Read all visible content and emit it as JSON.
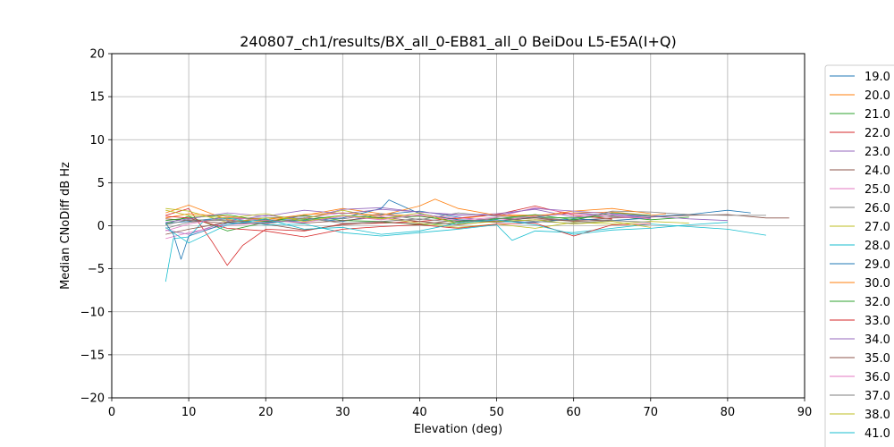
{
  "chart_data": {
    "type": "line",
    "title": "240807_ch1/results/BX_all_0-EB81_all_0 BeiDou L5-E5A(I+Q)",
    "xlabel": "Elevation (deg)",
    "ylabel": "Median CNoDiff dB Hz",
    "xlim": [
      0,
      90
    ],
    "ylim": [
      -20,
      20
    ],
    "xticks": [
      0,
      10,
      20,
      30,
      40,
      50,
      60,
      70,
      80,
      90
    ],
    "yticks": [
      -20,
      -15,
      -10,
      -5,
      0,
      5,
      10,
      15,
      20
    ],
    "xtick_labels": [
      "0",
      "10",
      "20",
      "30",
      "40",
      "50",
      "60",
      "70",
      "80",
      "90"
    ],
    "ytick_labels": [
      "−20",
      "−15",
      "−10",
      "−5",
      "0",
      "5",
      "10",
      "15",
      "20"
    ],
    "grid": true,
    "legend_position": "right (outside plot, clipped)",
    "series": [
      {
        "name": "19.0",
        "color": "#1f77b4",
        "x": [
          7,
          10,
          15,
          20,
          25,
          30,
          35,
          40,
          45,
          50,
          55,
          60,
          65,
          70,
          75,
          80,
          83
        ],
        "values": [
          0.3,
          0.5,
          1.0,
          0.6,
          0.9,
          0.5,
          1.3,
          1.7,
          1.0,
          0.5,
          1.0,
          1.5,
          1.2,
          1.1,
          1.3,
          1.8,
          1.5
        ]
      },
      {
        "name": "20.0",
        "color": "#ff7f0e",
        "x": [
          7,
          10,
          15,
          20,
          25,
          30,
          35,
          40,
          45,
          50,
          55,
          60,
          65,
          70,
          72
        ],
        "values": [
          1.5,
          2.4,
          0.7,
          0.5,
          1.2,
          2.0,
          1.4,
          1.1,
          0.8,
          1.3,
          1.2,
          1.5,
          1.6,
          1.2,
          1.4
        ]
      },
      {
        "name": "21.0",
        "color": "#2ca02c",
        "x": [
          7,
          10,
          15,
          20,
          25,
          30,
          35,
          40,
          45,
          50,
          55,
          60,
          65,
          70,
          75
        ],
        "values": [
          0.2,
          1.1,
          -0.6,
          0.4,
          1.2,
          0.6,
          0.5,
          0.1,
          0.3,
          0.8,
          1.0,
          0.9,
          1.1,
          0.7,
          1.0
        ]
      },
      {
        "name": "22.0",
        "color": "#d62728",
        "x": [
          7,
          10,
          13,
          15,
          17,
          20,
          25,
          30,
          35,
          40,
          45,
          50,
          55,
          60,
          65
        ],
        "values": [
          1.2,
          2.0,
          -1.8,
          -4.6,
          -2.3,
          -0.4,
          -0.6,
          0.2,
          0.3,
          0.5,
          0.9,
          1.3,
          2.3,
          1.2,
          0.8
        ]
      },
      {
        "name": "23.0",
        "color": "#9467bd",
        "x": [
          7,
          10,
          15,
          20,
          25,
          30,
          35,
          40,
          45,
          50,
          55,
          60,
          65,
          70
        ],
        "values": [
          -0.5,
          -1.0,
          0.5,
          1.2,
          0.8,
          1.9,
          2.1,
          1.6,
          1.2,
          1.4,
          1.9,
          1.0,
          1.3,
          0.9
        ]
      },
      {
        "name": "24.0",
        "color": "#8c564b",
        "x": [
          7,
          10,
          15,
          20,
          25,
          30,
          35,
          40,
          45,
          50,
          55,
          60,
          65,
          70,
          75,
          80,
          85,
          88
        ],
        "values": [
          0.8,
          0.6,
          0.3,
          0.2,
          -0.5,
          0.1,
          0.4,
          0.2,
          0.6,
          0.4,
          0.7,
          0.6,
          0.9,
          1.0,
          1.2,
          1.3,
          0.9,
          0.9
        ]
      },
      {
        "name": "25.0",
        "color": "#e377c2",
        "x": [
          7,
          10,
          15,
          20,
          25,
          30,
          35,
          40,
          45,
          50,
          55,
          60,
          65,
          70
        ],
        "values": [
          -1.5,
          -0.8,
          0.1,
          0.3,
          0.9,
          1.5,
          1.1,
          1.2,
          0.6,
          1.0,
          2.1,
          1.4,
          1.0,
          0.9
        ]
      },
      {
        "name": "26.0",
        "color": "#7f7f7f",
        "x": [
          7,
          10,
          15,
          20,
          25,
          30,
          35,
          40,
          45,
          50,
          55,
          60,
          65,
          70,
          75,
          80,
          85
        ],
        "values": [
          -0.3,
          0.4,
          0.8,
          0.9,
          1.1,
          0.8,
          1.4,
          0.7,
          1.5,
          1.1,
          1.0,
          0.6,
          1.7,
          1.6,
          1.3,
          1.2,
          1.2
        ]
      },
      {
        "name": "27.0",
        "color": "#bcbd22",
        "x": [
          7,
          10,
          15,
          20,
          25,
          30,
          35,
          40,
          45,
          50,
          55,
          60,
          65,
          70,
          75
        ],
        "values": [
          2.0,
          1.7,
          0.4,
          0.9,
          0.8,
          1.8,
          0.9,
          0.3,
          -0.2,
          0.2,
          -0.3,
          0.4,
          0.2,
          0.5,
          0.3
        ]
      },
      {
        "name": "28.0",
        "color": "#17becf",
        "x": [
          7,
          8,
          10,
          12,
          15,
          20,
          25,
          30,
          35,
          40,
          45,
          50,
          52,
          55,
          60,
          65,
          70,
          75,
          80,
          85
        ],
        "values": [
          -6.5,
          -1.5,
          -1.3,
          0.6,
          0.9,
          0.1,
          0.2,
          -0.8,
          -1.2,
          -0.8,
          -0.4,
          0.1,
          -1.7,
          -0.6,
          -0.8,
          -0.3,
          0.2,
          -0.1,
          -0.4,
          -1.1
        ]
      },
      {
        "name": "29.0",
        "color": "#1f77b4",
        "x": [
          7,
          8,
          9,
          10,
          15,
          20,
          25,
          30,
          35,
          36,
          40,
          45,
          50,
          55,
          60,
          65,
          70
        ],
        "values": [
          0.3,
          -1.0,
          -3.9,
          -1.2,
          0.3,
          0.4,
          0.6,
          0.9,
          2.0,
          3.0,
          1.4,
          0.7,
          0.5,
          0.4,
          0.8,
          0.6,
          0.9
        ]
      },
      {
        "name": "30.0",
        "color": "#ff7f0e",
        "x": [
          7,
          10,
          15,
          20,
          25,
          30,
          35,
          40,
          42,
          45,
          50,
          55,
          60,
          65,
          70
        ],
        "values": [
          0.9,
          1.4,
          1.1,
          0.7,
          1.3,
          1.5,
          1.2,
          2.3,
          3.1,
          2.0,
          1.2,
          1.1,
          1.7,
          2.0,
          1.4
        ]
      },
      {
        "name": "32.0",
        "color": "#2ca02c",
        "x": [
          7,
          10,
          15,
          20,
          25,
          30,
          35,
          40,
          45,
          50,
          55,
          60,
          65,
          70
        ],
        "values": [
          0.6,
          0.9,
          1.3,
          0.5,
          0.7,
          1.2,
          0.9,
          1.1,
          0.5,
          0.8,
          1.3,
          0.7,
          1.5,
          1.2
        ]
      },
      {
        "name": "33.0",
        "color": "#d62728",
        "x": [
          7,
          10,
          15,
          20,
          25,
          30,
          35,
          40,
          45,
          50,
          55,
          60,
          65,
          70
        ],
        "values": [
          1.1,
          0.9,
          -0.3,
          -0.6,
          -1.3,
          -0.4,
          -0.1,
          0.1,
          -0.3,
          0.2,
          0.3,
          -1.2,
          0.1,
          0.2
        ]
      },
      {
        "name": "34.0",
        "color": "#9467bd",
        "x": [
          7,
          10,
          15,
          20,
          25,
          30,
          35,
          40,
          45,
          50,
          55,
          60,
          65,
          70,
          75,
          80
        ],
        "values": [
          0.4,
          0.8,
          1.5,
          1.1,
          1.8,
          1.4,
          1.9,
          1.6,
          1.3,
          1.2,
          2.0,
          1.7,
          1.4,
          1.1,
          0.8,
          0.6
        ]
      },
      {
        "name": "35.0",
        "color": "#8c564b",
        "x": [
          7,
          10,
          15,
          20,
          25,
          30,
          35,
          40,
          45,
          50,
          55,
          60,
          65
        ],
        "values": [
          -1.0,
          -0.4,
          0.4,
          0.7,
          0.3,
          0.6,
          1.0,
          0.5,
          0.1,
          0.6,
          0.9,
          0.5,
          0.7
        ]
      },
      {
        "name": "36.0",
        "color": "#e377c2",
        "x": [
          7,
          10,
          15,
          20,
          25,
          30,
          35,
          40,
          45,
          50,
          55,
          60,
          65,
          70
        ],
        "values": [
          -0.6,
          0.2,
          1.0,
          0.6,
          0.4,
          1.1,
          0.7,
          1.3,
          0.9,
          0.6,
          1.1,
          1.4,
          1.2,
          0.8
        ]
      },
      {
        "name": "37.0",
        "color": "#7f7f7f",
        "x": [
          7,
          10,
          15,
          20,
          25,
          30,
          35,
          40,
          45,
          50,
          55,
          60,
          65,
          70
        ],
        "values": [
          0.1,
          0.7,
          0.6,
          0.2,
          0.9,
          0.3,
          0.5,
          0.8,
          0.4,
          0.9,
          0.5,
          0.3,
          0.6,
          0.4
        ]
      },
      {
        "name": "38.0",
        "color": "#bcbd22",
        "x": [
          7,
          10,
          15,
          20,
          25,
          30,
          35,
          40,
          45,
          50,
          55,
          60,
          65,
          70
        ],
        "values": [
          1.8,
          1.2,
          0.9,
          1.4,
          0.5,
          1.2,
          0.8,
          1.5,
          0.2,
          0.5,
          0.7,
          0.2,
          0.5,
          -0.2
        ]
      },
      {
        "name": "41.0",
        "color": "#17becf",
        "x": [
          7,
          10,
          15,
          20,
          25,
          30,
          35,
          40,
          45,
          50,
          55,
          60,
          65,
          70,
          75,
          80
        ],
        "values": [
          -0.2,
          -2.0,
          0.1,
          0.8,
          -0.4,
          -0.2,
          -1.0,
          -0.6,
          0.3,
          0.7,
          0.1,
          -1.0,
          -0.5,
          -0.3,
          0.1,
          0.4
        ]
      }
    ]
  }
}
